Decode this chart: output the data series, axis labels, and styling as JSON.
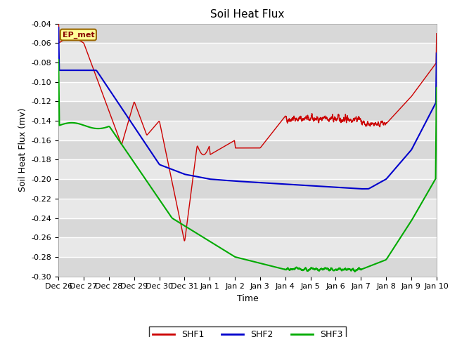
{
  "title": "Soil Heat Flux",
  "ylabel": "Soil Heat Flux (mv)",
  "xlabel": "Time",
  "ylim": [
    -0.3,
    -0.04
  ],
  "yticks": [
    -0.04,
    -0.06,
    -0.08,
    -0.1,
    -0.12,
    -0.14,
    -0.16,
    -0.18,
    -0.2,
    -0.22,
    -0.24,
    -0.26,
    -0.28,
    -0.3
  ],
  "xtick_labels": [
    "Dec 26",
    "Dec 27",
    "Dec 28",
    "Dec 29",
    "Dec 30",
    "Dec 31",
    "Jan 1",
    "Jan 2",
    "Jan 3",
    "Jan 4",
    "Jan 5",
    "Jan 6",
    "Jan 7",
    "Jan 8",
    "Jan 9",
    "Jan 10"
  ],
  "shf1_color": "#cc0000",
  "shf2_color": "#0000cc",
  "shf3_color": "#00aa00",
  "annotation_text": "EP_met",
  "annotation_bg": "#ffff99",
  "annotation_border": "#996600",
  "plot_bg_light": "#e8e8e8",
  "plot_bg_dark": "#d8d8d8",
  "grid_color": "#ffffff",
  "title_fontsize": 11,
  "label_fontsize": 9,
  "tick_fontsize": 8
}
